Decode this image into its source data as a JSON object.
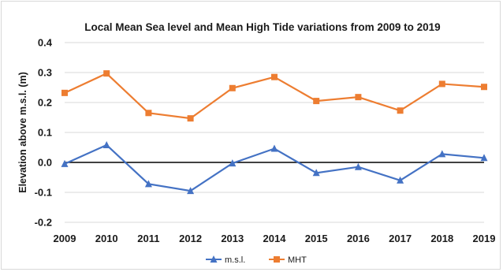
{
  "chart_data": {
    "type": "line",
    "title": "Local Mean Sea level and Mean High Tide variations from 2009 to 2019",
    "xlabel": "",
    "ylabel": "Elevation above m.s.l. (m)",
    "categories": [
      "2009",
      "2010",
      "2011",
      "2012",
      "2013",
      "2014",
      "2015",
      "2016",
      "2017",
      "2018",
      "2019"
    ],
    "ylim": [
      -0.2,
      0.4
    ],
    "yticks": [
      -0.2,
      -0.1,
      0.0,
      0.1,
      0.2,
      0.3,
      0.4
    ],
    "ytick_labels": [
      "-0.2",
      "-0.1",
      "0.0",
      "0.1",
      "0.2",
      "0.3",
      "0.4"
    ],
    "grid": "horizontal",
    "legend": "bottom",
    "series": [
      {
        "name": "m.s.l.",
        "color": "#4472c4",
        "marker": "triangle",
        "values": [
          -0.005,
          0.058,
          -0.072,
          -0.095,
          -0.003,
          0.046,
          -0.035,
          -0.015,
          -0.06,
          0.028,
          0.015
        ]
      },
      {
        "name": "MHT",
        "color": "#ed7d31",
        "marker": "square",
        "values": [
          0.232,
          0.297,
          0.165,
          0.147,
          0.248,
          0.285,
          0.205,
          0.218,
          0.173,
          0.262,
          0.252
        ]
      }
    ]
  }
}
